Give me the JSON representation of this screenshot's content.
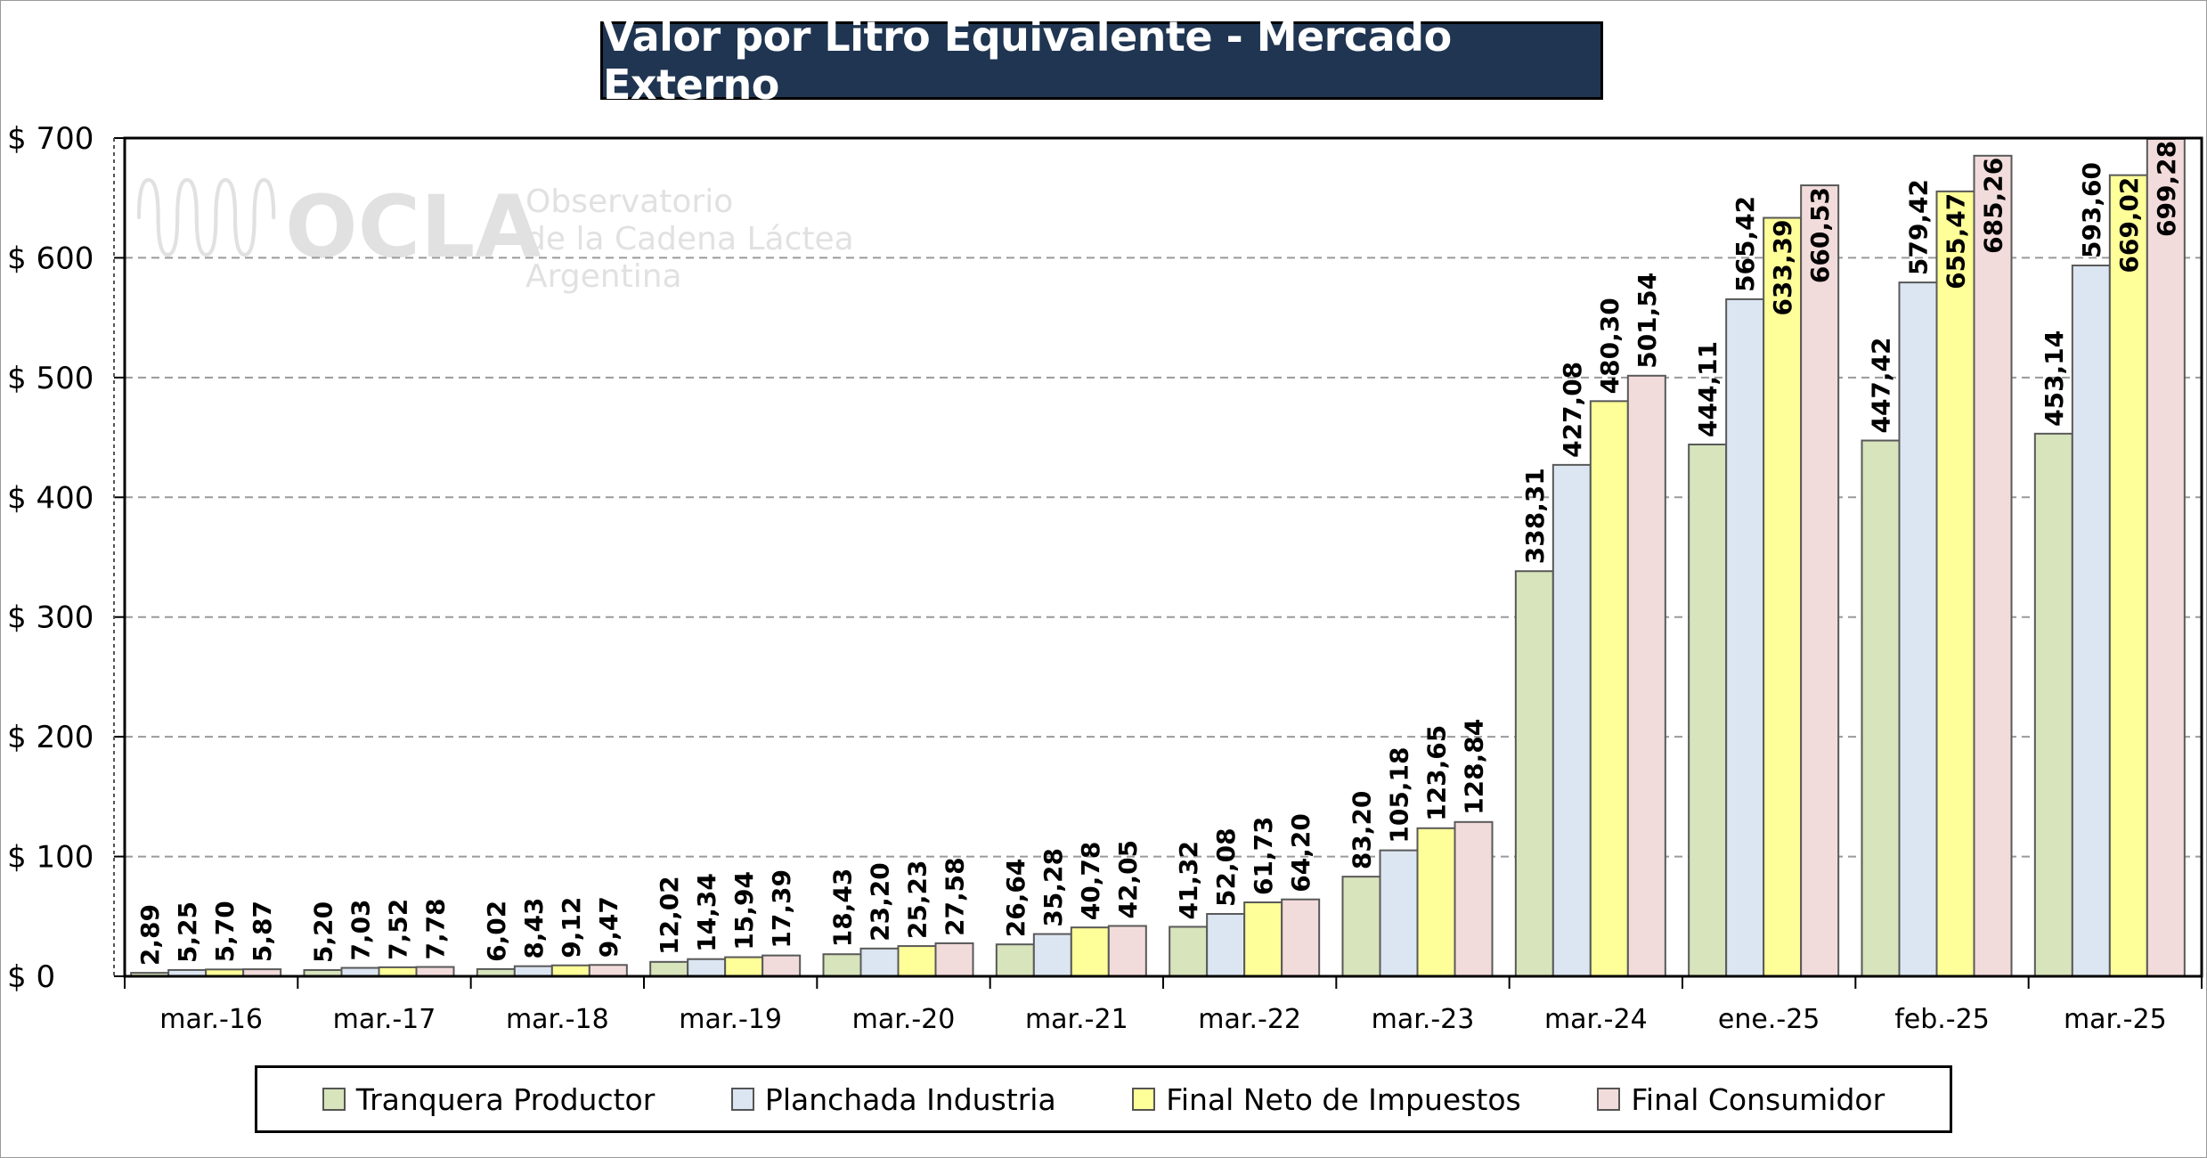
{
  "chart_data": {
    "type": "bar",
    "title": "Valor por Litro Equivalente - Mercado Externo",
    "categories": [
      "mar.-16",
      "mar.-17",
      "mar.-18",
      "mar.-19",
      "mar.-20",
      "mar.-21",
      "mar.-22",
      "mar.-23",
      "mar.-24",
      "ene.-25",
      "feb.-25",
      "mar.-25"
    ],
    "series": [
      {
        "name": "Tranquera Productor",
        "color": "#d7e4bc",
        "values": [
          2.89,
          5.2,
          6.02,
          12.02,
          18.43,
          26.64,
          41.32,
          83.2,
          338.31,
          444.11,
          447.42,
          453.14
        ],
        "labels": [
          "2,89",
          "5,20",
          "6,02",
          "12,02",
          "18,43",
          "26,64",
          "41,32",
          "83,20",
          "338,31",
          "444,11",
          "447,42",
          "453,14"
        ]
      },
      {
        "name": "Planchada Industria",
        "color": "#dce6f2",
        "values": [
          5.25,
          7.03,
          8.43,
          14.34,
          23.2,
          35.28,
          52.08,
          105.18,
          427.08,
          565.42,
          579.42,
          593.6
        ],
        "labels": [
          "5,25",
          "7,03",
          "8,43",
          "14,34",
          "23,20",
          "35,28",
          "52,08",
          "105,18",
          "427,08",
          "565,42",
          "579,42",
          "593,60"
        ]
      },
      {
        "name": "Final Neto de Impuestos",
        "color": "#ffff99",
        "values": [
          5.7,
          7.52,
          9.12,
          15.94,
          25.23,
          40.78,
          61.73,
          123.65,
          480.3,
          633.39,
          655.47,
          669.02
        ],
        "labels": [
          "5,70",
          "7,52",
          "9,12",
          "15,94",
          "25,23",
          "40,78",
          "61,73",
          "123,65",
          "480,30",
          "633,39",
          "655,47",
          "669,02"
        ]
      },
      {
        "name": "Final Consumidor",
        "color": "#f2dcdb",
        "values": [
          5.87,
          7.78,
          9.47,
          17.39,
          27.58,
          42.05,
          64.2,
          128.84,
          501.54,
          660.53,
          685.26,
          699.28
        ],
        "labels": [
          "5,87",
          "7,78",
          "9,47",
          "17,39",
          "27,58",
          "42,05",
          "64,20",
          "128,84",
          "501,54",
          "660,53",
          "685,26",
          "699,28"
        ]
      }
    ],
    "ylim": [
      0,
      700
    ],
    "yticks": [
      0,
      100,
      200,
      300,
      400,
      500,
      600,
      700
    ],
    "ytick_labels": [
      "$ 0",
      "$ 100",
      "$ 200",
      "$ 300",
      "$ 400",
      "$ 500",
      "$ 600",
      "$ 700"
    ],
    "grid": true,
    "legend_position": "bottom"
  },
  "watermark": {
    "logo": "OCLA",
    "line1": "Observatorio",
    "line2": "de la Cadena Láctea",
    "line3": "Argentina"
  }
}
